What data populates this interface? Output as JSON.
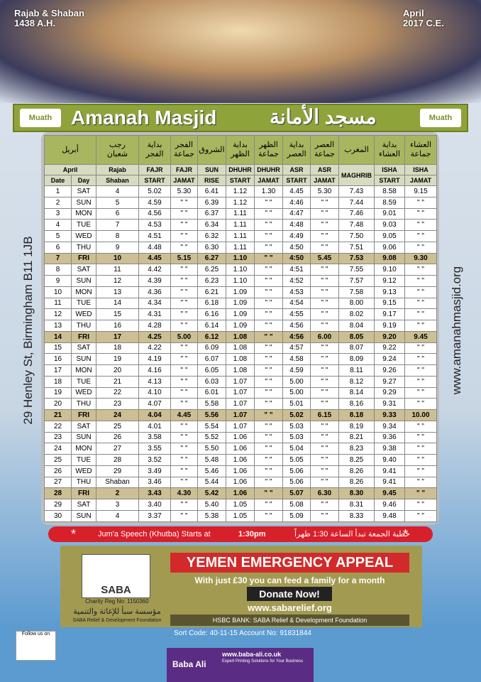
{
  "header": {
    "hijri_month": "Rajab & Shaban",
    "hijri_year": "1438 A.H.",
    "greg_month": "April",
    "greg_year": "2017 C.E."
  },
  "banner": {
    "logo_left": "Muath",
    "title_en": "Amanah Masjid",
    "title_ar": "مسجد الأمانة",
    "logo_right": "Muath"
  },
  "side": {
    "address": "29 Henley St, Birmingham B11 1JB",
    "website": "www.amanahmasjid.org"
  },
  "table": {
    "arabic_headers": [
      [
        "أبريل"
      ],
      [
        "رجب",
        "شعبان"
      ],
      [
        "بداية",
        "الفجر"
      ],
      [
        "الفجر",
        "جماعة"
      ],
      [
        "الشروق"
      ],
      [
        "بداية",
        "الظهر"
      ],
      [
        "الظهر",
        "جماعة"
      ],
      [
        "بداية",
        "العصر"
      ],
      [
        "العصر",
        "جماعة"
      ],
      [
        "المغرب"
      ],
      [
        "بداية",
        "العشاء"
      ],
      [
        "العشاء",
        "جماعة"
      ]
    ],
    "header_row_a": [
      "April",
      "Rajab",
      "FAJR",
      "FAJR",
      "SUN",
      "DHUHR",
      "DHUHR",
      "ASR",
      "ASR",
      "MAGHRIB",
      "ISHA",
      "ISHA"
    ],
    "header_row_b": [
      "Date",
      "Day",
      "Shaban",
      "START",
      "JAMAT",
      "RISE",
      "START",
      "JAMAT",
      "START",
      "JAMAT",
      "START",
      "JAMAT"
    ],
    "rows": [
      [
        "1",
        "SAT",
        "4",
        "5.02",
        "5.30",
        "6.41",
        "1.12",
        "1.30",
        "4.45",
        "5.30",
        "7.43",
        "8.58",
        "9.15"
      ],
      [
        "2",
        "SUN",
        "5",
        "4.59",
        "\" \"",
        "6.39",
        "1.12",
        "\" \"",
        "4:46",
        "\" \"",
        "7.44",
        "8.59",
        "\" \""
      ],
      [
        "3",
        "MON",
        "6",
        "4.56",
        "\" \"",
        "6.37",
        "1.11",
        "\" \"",
        "4:47",
        "\" \"",
        "7.46",
        "9.01",
        "\" \""
      ],
      [
        "4",
        "TUE",
        "7",
        "4.53",
        "\" \"",
        "6.34",
        "1.11",
        "\" \"",
        "4:48",
        "\" \"",
        "7.48",
        "9.03",
        "\" \""
      ],
      [
        "5",
        "WED",
        "8",
        "4.51",
        "\" \"",
        "6.32",
        "1.11",
        "\" \"",
        "4:49",
        "\" \"",
        "7.50",
        "9.05",
        "\" \""
      ],
      [
        "6",
        "THU",
        "9",
        "4.48",
        "\" \"",
        "6.30",
        "1.11",
        "\" \"",
        "4:50",
        "\" \"",
        "7.51",
        "9.06",
        "\" \""
      ],
      [
        "7",
        "FRI",
        "10",
        "4.45",
        "5.15",
        "6.27",
        "1.10",
        "\" \"",
        "4:50",
        "5.45",
        "7.53",
        "9.08",
        "9.30"
      ],
      [
        "8",
        "SAT",
        "11",
        "4.42",
        "\" \"",
        "6.25",
        "1.10",
        "\" \"",
        "4:51",
        "\" \"",
        "7.55",
        "9.10",
        "\" \""
      ],
      [
        "9",
        "SUN",
        "12",
        "4.39",
        "\" \"",
        "6.23",
        "1.10",
        "\" \"",
        "4:52",
        "\" \"",
        "7.57",
        "9.12",
        "\" \""
      ],
      [
        "10",
        "MON",
        "13",
        "4.36",
        "\" \"",
        "6.21",
        "1.09",
        "\" \"",
        "4:53",
        "\" \"",
        "7.58",
        "9.13",
        "\" \""
      ],
      [
        "11",
        "TUE",
        "14",
        "4.34",
        "\" \"",
        "6.18",
        "1.09",
        "\" \"",
        "4:54",
        "\" \"",
        "8.00",
        "9.15",
        "\" \""
      ],
      [
        "12",
        "WED",
        "15",
        "4.31",
        "\" \"",
        "6.16",
        "1.09",
        "\" \"",
        "4:55",
        "\" \"",
        "8.02",
        "9.17",
        "\" \""
      ],
      [
        "13",
        "THU",
        "16",
        "4.28",
        "\" \"",
        "6.14",
        "1.09",
        "\" \"",
        "4:56",
        "\" \"",
        "8.04",
        "9.19",
        "\" \""
      ],
      [
        "14",
        "FRI",
        "17",
        "4.25",
        "5.00",
        "6.12",
        "1.08",
        "\" \"",
        "4:56",
        "6.00",
        "8.05",
        "9.20",
        "9.45"
      ],
      [
        "15",
        "SAT",
        "18",
        "4.22",
        "\" \"",
        "6.09",
        "1.08",
        "\" \"",
        "4:57",
        "\" \"",
        "8.07",
        "9.22",
        "\" \""
      ],
      [
        "16",
        "SUN",
        "19",
        "4.19",
        "\" \"",
        "6.07",
        "1.08",
        "\" \"",
        "4.58",
        "\" \"",
        "8.09",
        "9.24",
        "\" \""
      ],
      [
        "17",
        "MON",
        "20",
        "4.16",
        "\" \"",
        "6.05",
        "1.08",
        "\" \"",
        "4.59",
        "\" \"",
        "8.11",
        "9.26",
        "\" \""
      ],
      [
        "18",
        "TUE",
        "21",
        "4.13",
        "\" \"",
        "6.03",
        "1.07",
        "\" \"",
        "5.00",
        "\" \"",
        "8.12",
        "9.27",
        "\" \""
      ],
      [
        "19",
        "WED",
        "22",
        "4.10",
        "\" \"",
        "6.01",
        "1.07",
        "\" \"",
        "5.00",
        "\" \"",
        "8.14",
        "9.29",
        "\" \""
      ],
      [
        "20",
        "THU",
        "23",
        "4.07",
        "\" \"",
        "5.58",
        "1.07",
        "\" \"",
        "5.01",
        "\" \"",
        "8.16",
        "9.31",
        "\" \""
      ],
      [
        "21",
        "FRI",
        "24",
        "4.04",
        "4.45",
        "5.56",
        "1.07",
        "\" \"",
        "5.02",
        "6.15",
        "8.18",
        "9.33",
        "10.00"
      ],
      [
        "22",
        "SAT",
        "25",
        "4.01",
        "\" \"",
        "5.54",
        "1.07",
        "\" \"",
        "5.03",
        "\" \"",
        "8.19",
        "9.34",
        "\" \""
      ],
      [
        "23",
        "SUN",
        "26",
        "3.58",
        "\" \"",
        "5.52",
        "1.06",
        "\" \"",
        "5.03",
        "\" \"",
        "8.21",
        "9.36",
        "\" \""
      ],
      [
        "24",
        "MON",
        "27",
        "3.55",
        "\" \"",
        "5.50",
        "1.06",
        "\" \"",
        "5.04",
        "\" \"",
        "8.23",
        "9.38",
        "\" \""
      ],
      [
        "25",
        "TUE",
        "28",
        "3.52",
        "\" \"",
        "5.48",
        "1.06",
        "\" \"",
        "5.05",
        "\" \"",
        "8.25",
        "9.40",
        "\" \""
      ],
      [
        "26",
        "WED",
        "29",
        "3.49",
        "\" \"",
        "5.46",
        "1.06",
        "\" \"",
        "5.06",
        "\" \"",
        "8.26",
        "9.41",
        "\" \""
      ],
      [
        "27",
        "THU",
        "Shaban",
        "3.46",
        "\" \"",
        "5.44",
        "1.06",
        "\" \"",
        "5.06",
        "\" \"",
        "8.26",
        "9.41",
        "\" \""
      ],
      [
        "28",
        "FRI",
        "2",
        "3.43",
        "4.30",
        "5.42",
        "1.06",
        "\" \"",
        "5.07",
        "6.30",
        "8.30",
        "9.45",
        "\" \""
      ],
      [
        "29",
        "SAT",
        "3",
        "3.40",
        "\" \"",
        "5.40",
        "1.05",
        "\" \"",
        "5.08",
        "\" \"",
        "8.31",
        "9.46",
        "\" \""
      ],
      [
        "30",
        "SUN",
        "4",
        "3.37",
        "\" \"",
        "5.38",
        "1.05",
        "\" \"",
        "5.09",
        "\" \"",
        "8.33",
        "9.48",
        "\" \""
      ]
    ]
  },
  "jumah": {
    "text_en": "Jum'a Speech (Khutba) Starts at",
    "time": "1:30pm",
    "text_ar": "خطبة الجمعة تبدأ الساعة 1:30 ظهراً"
  },
  "ad": {
    "logo": "SABA",
    "charity_reg": "Charity Reg No: 1150360",
    "org_ar": "مؤسسة سبأ للإغاثة والتنمية",
    "org_en": "SABA Relief & Development Foundation",
    "title": "YEMEN EMERGENCY APPEAL",
    "tagline": "With just £30 you can feed a family for a month",
    "button": "Donate Now!",
    "url": "www.sabarelief.org",
    "bank": "HSBC BANK: SABA Relief & Development Foundation",
    "account": "Sort Code: 40-11-15 Account No: 91831844"
  },
  "footer": {
    "follow": "Follow us on",
    "printer": "Baba Ali",
    "printer_url": "www.baba-ali.co.uk",
    "printer_tag": "Expert Printing Solutions for Your Business"
  }
}
